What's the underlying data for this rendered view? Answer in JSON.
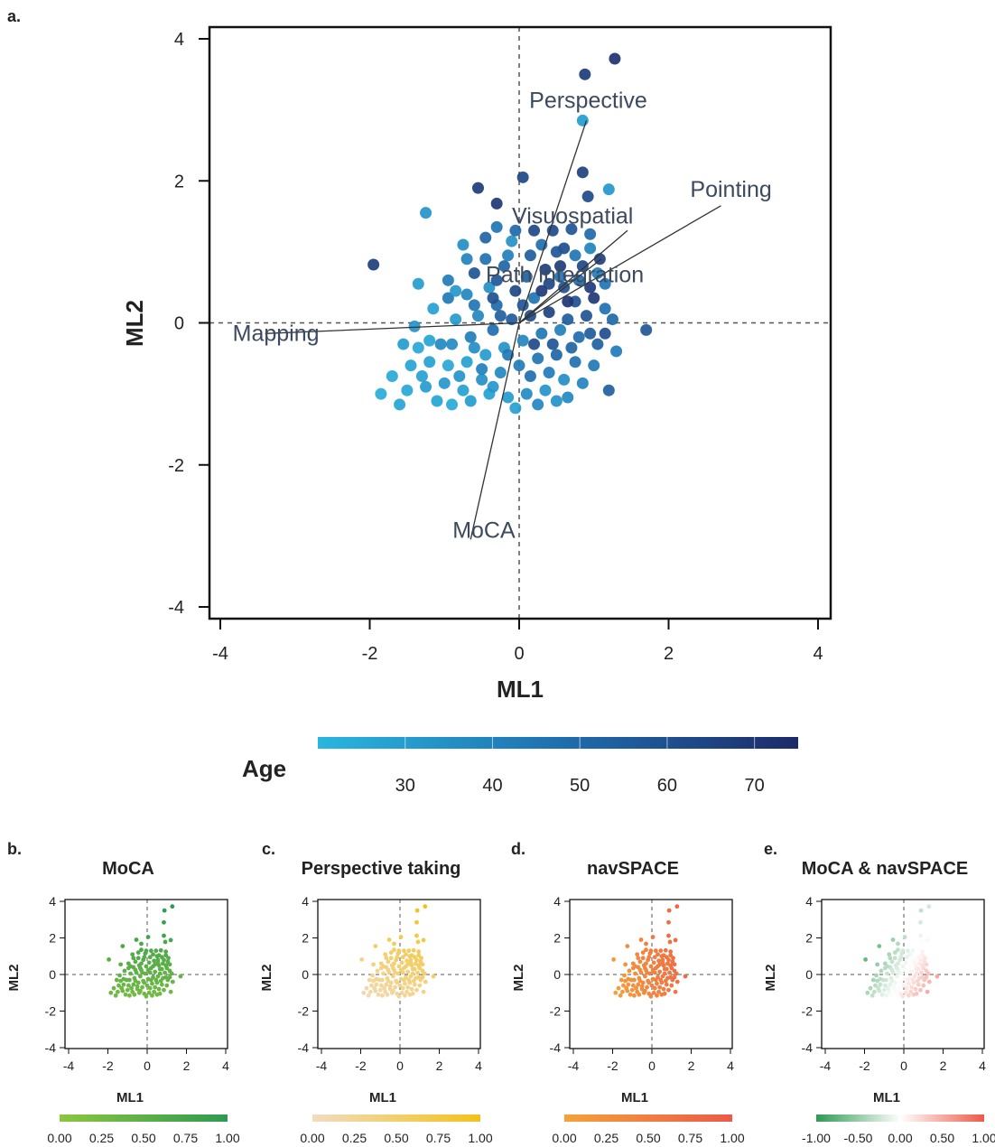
{
  "chart_data": [
    {
      "panel": "a.",
      "type": "scatter",
      "xlabel": "ML1",
      "ylabel": "ML2",
      "xlim": [
        -4,
        4
      ],
      "ylim": [
        -4,
        4
      ],
      "xticks": [
        "-4",
        "-2",
        "0",
        "2",
        "4"
      ],
      "yticks": [
        "-4",
        "-2",
        "0",
        "2",
        "4"
      ],
      "reference_lines": "dashed lines at x=0 and y=0",
      "color_legend": {
        "title": "Age",
        "ticks": [
          "30",
          "40",
          "50",
          "60",
          "70"
        ],
        "range": [
          20,
          75
        ],
        "colors": [
          "#29b6e0",
          "#1f6fb0",
          "#1e2a68"
        ]
      },
      "vectors": [
        {
          "label": "Perspective",
          "x": 0.9,
          "y": 2.85
        },
        {
          "label": "Pointing",
          "x": 2.7,
          "y": 1.65
        },
        {
          "label": "Visuospatial",
          "x": 1.45,
          "y": 1.3
        },
        {
          "label": "Path integration",
          "x": 1.1,
          "y": 0.9
        },
        {
          "label": "Mapping",
          "x": -3.4,
          "y": -0.15
        },
        {
          "label": "MoCA",
          "x": -0.65,
          "y": -3.05
        }
      ],
      "points": [
        {
          "x": 1.28,
          "y": 3.72,
          "age": 72
        },
        {
          "x": 0.88,
          "y": 3.5,
          "age": 68
        },
        {
          "x": 0.85,
          "y": 2.85,
          "age": 30
        },
        {
          "x": 0.85,
          "y": 2.12,
          "age": 66
        },
        {
          "x": 0.92,
          "y": 1.78,
          "age": 62
        },
        {
          "x": 1.2,
          "y": 1.88,
          "age": 32
        },
        {
          "x": 0.05,
          "y": 2.05,
          "age": 64
        },
        {
          "x": -0.3,
          "y": 1.68,
          "age": 70
        },
        {
          "x": -0.55,
          "y": 1.9,
          "age": 68
        },
        {
          "x": -1.25,
          "y": 1.55,
          "age": 33
        },
        {
          "x": -1.95,
          "y": 0.82,
          "age": 67
        },
        {
          "x": 1.7,
          "y": -0.1,
          "age": 57
        },
        {
          "x": -0.3,
          "y": 1.35,
          "age": 45
        },
        {
          "x": 0.45,
          "y": 1.3,
          "age": 62
        },
        {
          "x": 0.7,
          "y": 1.32,
          "age": 58
        },
        {
          "x": 0.95,
          "y": 1.25,
          "age": 50
        },
        {
          "x": 0.3,
          "y": 1.1,
          "age": 48
        },
        {
          "x": -0.1,
          "y": 1.15,
          "age": 34
        },
        {
          "x": 0.15,
          "y": 0.95,
          "age": 55
        },
        {
          "x": 0.6,
          "y": 1.05,
          "age": 61
        },
        {
          "x": 0.95,
          "y": 1.05,
          "age": 40
        },
        {
          "x": 1.08,
          "y": 0.9,
          "age": 66
        },
        {
          "x": -0.75,
          "y": 1.1,
          "age": 36
        },
        {
          "x": -1.35,
          "y": 0.55,
          "age": 30
        },
        {
          "x": -0.95,
          "y": 0.35,
          "age": 44
        },
        {
          "x": -0.6,
          "y": 0.7,
          "age": 58
        },
        {
          "x": -0.4,
          "y": 0.5,
          "age": 35
        },
        {
          "x": -0.2,
          "y": 0.8,
          "age": 52
        },
        {
          "x": 0.55,
          "y": 0.8,
          "age": 68
        },
        {
          "x": 0.8,
          "y": 0.6,
          "age": 49
        },
        {
          "x": 1.15,
          "y": 0.55,
          "age": 45
        },
        {
          "x": 1.0,
          "y": 0.35,
          "age": 70
        },
        {
          "x": 0.75,
          "y": 0.3,
          "age": 60
        },
        {
          "x": 0.4,
          "y": 0.55,
          "age": 63
        },
        {
          "x": 0.2,
          "y": 0.35,
          "age": 46
        },
        {
          "x": -0.05,
          "y": 0.45,
          "age": 64
        },
        {
          "x": -0.3,
          "y": 0.25,
          "age": 50
        },
        {
          "x": -0.55,
          "y": 0.1,
          "age": 38
        },
        {
          "x": -0.85,
          "y": 0.05,
          "age": 31
        },
        {
          "x": -1.15,
          "y": 0.2,
          "age": 28
        },
        {
          "x": -1.4,
          "y": -0.05,
          "age": 33
        },
        {
          "x": -1.2,
          "y": -0.25,
          "age": 27
        },
        {
          "x": -0.9,
          "y": -0.3,
          "age": 37
        },
        {
          "x": -0.65,
          "y": -0.2,
          "age": 42
        },
        {
          "x": -0.35,
          "y": -0.1,
          "age": 48
        },
        {
          "x": -0.1,
          "y": 0.05,
          "age": 56
        },
        {
          "x": 0.15,
          "y": 0.1,
          "age": 61
        },
        {
          "x": 0.4,
          "y": 0.15,
          "age": 66
        },
        {
          "x": 0.65,
          "y": 0.05,
          "age": 55
        },
        {
          "x": 0.9,
          "y": 0.1,
          "age": 59
        },
        {
          "x": 1.15,
          "y": 0.2,
          "age": 47
        },
        {
          "x": 1.3,
          "y": -0.4,
          "age": 43
        },
        {
          "x": 1.05,
          "y": -0.3,
          "age": 53
        },
        {
          "x": 0.8,
          "y": -0.2,
          "age": 49
        },
        {
          "x": 0.55,
          "y": -0.1,
          "age": 41
        },
        {
          "x": 0.3,
          "y": -0.15,
          "age": 45
        },
        {
          "x": 0.05,
          "y": -0.25,
          "age": 39
        },
        {
          "x": -0.2,
          "y": -0.35,
          "age": 34
        },
        {
          "x": -0.45,
          "y": -0.45,
          "age": 30
        },
        {
          "x": -0.7,
          "y": -0.55,
          "age": 28
        },
        {
          "x": -0.95,
          "y": -0.6,
          "age": 26
        },
        {
          "x": -1.2,
          "y": -0.55,
          "age": 29
        },
        {
          "x": -1.45,
          "y": -0.6,
          "age": 27
        },
        {
          "x": -1.7,
          "y": -0.75,
          "age": 25
        },
        {
          "x": -1.5,
          "y": -0.95,
          "age": 26
        },
        {
          "x": -1.85,
          "y": -1.0,
          "age": 24
        },
        {
          "x": -1.6,
          "y": -1.15,
          "age": 27
        },
        {
          "x": -1.25,
          "y": -0.9,
          "age": 30
        },
        {
          "x": -1.0,
          "y": -0.85,
          "age": 32
        },
        {
          "x": -0.75,
          "y": -0.95,
          "age": 29
        },
        {
          "x": -0.5,
          "y": -0.8,
          "age": 35
        },
        {
          "x": -0.25,
          "y": -0.7,
          "age": 38
        },
        {
          "x": 0.0,
          "y": -0.6,
          "age": 42
        },
        {
          "x": 0.25,
          "y": -0.5,
          "age": 46
        },
        {
          "x": 0.5,
          "y": -0.45,
          "age": 51
        },
        {
          "x": 0.75,
          "y": -0.55,
          "age": 47
        },
        {
          "x": 1.0,
          "y": -0.6,
          "age": 44
        },
        {
          "x": 1.2,
          "y": -0.95,
          "age": 54
        },
        {
          "x": 0.85,
          "y": -0.85,
          "age": 40
        },
        {
          "x": 0.6,
          "y": -0.8,
          "age": 36
        },
        {
          "x": 0.35,
          "y": -0.95,
          "age": 33
        },
        {
          "x": 0.1,
          "y": -1.0,
          "age": 37
        },
        {
          "x": -0.15,
          "y": -1.05,
          "age": 31
        },
        {
          "x": -0.4,
          "y": -1.0,
          "age": 28
        },
        {
          "x": -0.65,
          "y": -1.1,
          "age": 30
        },
        {
          "x": -0.9,
          "y": -1.15,
          "age": 25
        },
        {
          "x": -1.1,
          "y": -1.1,
          "age": 27
        },
        {
          "x": 0.5,
          "y": -1.1,
          "age": 34
        },
        {
          "x": 0.25,
          "y": -1.15,
          "age": 39
        },
        {
          "x": -0.05,
          "y": -1.2,
          "age": 29
        },
        {
          "x": -0.3,
          "y": 0.6,
          "age": 57
        },
        {
          "x": 0.1,
          "y": 0.65,
          "age": 53
        },
        {
          "x": 0.35,
          "y": 0.75,
          "age": 67
        },
        {
          "x": 0.6,
          "y": 0.5,
          "age": 59
        },
        {
          "x": 0.85,
          "y": 0.8,
          "age": 64
        },
        {
          "x": -0.15,
          "y": 0.95,
          "age": 41
        },
        {
          "x": -0.45,
          "y": 0.9,
          "age": 47
        },
        {
          "x": -0.7,
          "y": 0.4,
          "age": 39
        },
        {
          "x": -0.95,
          "y": 0.6,
          "age": 43
        },
        {
          "x": 0.2,
          "y": -0.3,
          "age": 62
        },
        {
          "x": 0.45,
          "y": -0.3,
          "age": 58
        },
        {
          "x": 0.7,
          "y": -0.35,
          "age": 52
        },
        {
          "x": -0.15,
          "y": -0.45,
          "age": 44
        },
        {
          "x": -0.6,
          "y": -0.35,
          "age": 36
        },
        {
          "x": -0.85,
          "y": 0.45,
          "age": 32
        },
        {
          "x": -1.35,
          "y": -0.35,
          "age": 26
        },
        {
          "x": -1.55,
          "y": -0.3,
          "age": 30
        },
        {
          "x": -1.05,
          "y": -0.3,
          "age": 38
        },
        {
          "x": 0.95,
          "y": -0.15,
          "age": 56
        },
        {
          "x": 1.25,
          "y": 0.05,
          "age": 50
        },
        {
          "x": 0.65,
          "y": 0.3,
          "age": 71
        },
        {
          "x": 0.3,
          "y": 0.45,
          "age": 69
        },
        {
          "x": 0.05,
          "y": 0.25,
          "age": 58
        },
        {
          "x": -0.25,
          "y": 0.1,
          "age": 54
        },
        {
          "x": 0.5,
          "y": 1.0,
          "age": 57
        },
        {
          "x": 0.2,
          "y": 1.3,
          "age": 63
        },
        {
          "x": -0.05,
          "y": 1.3,
          "age": 50
        },
        {
          "x": 0.75,
          "y": 0.95,
          "age": 45
        },
        {
          "x": 1.05,
          "y": 0.7,
          "age": 42
        },
        {
          "x": -0.5,
          "y": -0.65,
          "age": 41
        },
        {
          "x": -0.8,
          "y": -0.75,
          "age": 33
        },
        {
          "x": 0.15,
          "y": -0.75,
          "age": 48
        },
        {
          "x": 0.4,
          "y": -0.7,
          "age": 43
        },
        {
          "x": 0.65,
          "y": -1.05,
          "age": 38
        },
        {
          "x": -0.35,
          "y": -0.9,
          "age": 32
        },
        {
          "x": -1.3,
          "y": -0.75,
          "age": 28
        },
        {
          "x": -0.6,
          "y": 0.25,
          "age": 45
        },
        {
          "x": -0.35,
          "y": 0.35,
          "age": 60
        },
        {
          "x": 0.55,
          "y": 0.65,
          "age": 47
        },
        {
          "x": 0.95,
          "y": 0.5,
          "age": 68
        },
        {
          "x": 1.15,
          "y": -0.15,
          "age": 61
        },
        {
          "x": -0.45,
          "y": 1.2,
          "age": 52
        },
        {
          "x": -0.7,
          "y": 0.9,
          "age": 40
        }
      ]
    },
    {
      "panel": "b.",
      "type": "scatter",
      "title": "MoCA",
      "xlabel": "ML1",
      "ylabel": "ML2",
      "xlim": [
        -4,
        4
      ],
      "ylim": [
        -4,
        4
      ],
      "xticks": [
        "-4",
        "-2",
        "0",
        "2",
        "4"
      ],
      "yticks": [
        "-4",
        "-2",
        "0",
        "2",
        "4"
      ],
      "color_legend": {
        "ticks": [
          "0.00",
          "0.25",
          "0.50",
          "0.75",
          "1.00"
        ],
        "colors": [
          "#8cc63f",
          "#2e9a50"
        ]
      }
    },
    {
      "panel": "c.",
      "type": "scatter",
      "title": "Perspective taking",
      "xlabel": "ML1",
      "ylabel": "ML2",
      "xlim": [
        -4,
        4
      ],
      "ylim": [
        -4,
        4
      ],
      "xticks": [
        "-4",
        "-2",
        "0",
        "2",
        "4"
      ],
      "yticks": [
        "-4",
        "-2",
        "0",
        "2",
        "4"
      ],
      "color_legend": {
        "ticks": [
          "0.00",
          "0.25",
          "0.50",
          "0.75",
          "1.00"
        ],
        "colors": [
          "#f2dcc0",
          "#f2c21a"
        ]
      }
    },
    {
      "panel": "d.",
      "type": "scatter",
      "title": "navSPACE",
      "xlabel": "ML1",
      "ylabel": "ML2",
      "xlim": [
        -4,
        4
      ],
      "ylim": [
        -4,
        4
      ],
      "xticks": [
        "-4",
        "-2",
        "0",
        "2",
        "4"
      ],
      "yticks": [
        "-4",
        "-2",
        "0",
        "2",
        "4"
      ],
      "color_legend": {
        "ticks": [
          "0.00",
          "0.25",
          "0.50",
          "0.75",
          "1.00"
        ],
        "colors": [
          "#f5a23a",
          "#ec5a48"
        ]
      }
    },
    {
      "panel": "e.",
      "type": "scatter",
      "title": "MoCA & navSPACE",
      "xlabel": "ML1",
      "ylabel": "ML2",
      "xlim": [
        -4,
        4
      ],
      "ylim": [
        -4,
        4
      ],
      "xticks": [
        "-4",
        "-2",
        "0",
        "2",
        "4"
      ],
      "yticks": [
        "-4",
        "-2",
        "0",
        "2",
        "4"
      ],
      "color_legend": {
        "ticks": [
          "-1.00",
          "-0.50",
          "0.00",
          "0.50",
          "1.00"
        ],
        "colors": [
          "#2e9a50",
          "#ffffff",
          "#ec5a48"
        ]
      }
    }
  ]
}
